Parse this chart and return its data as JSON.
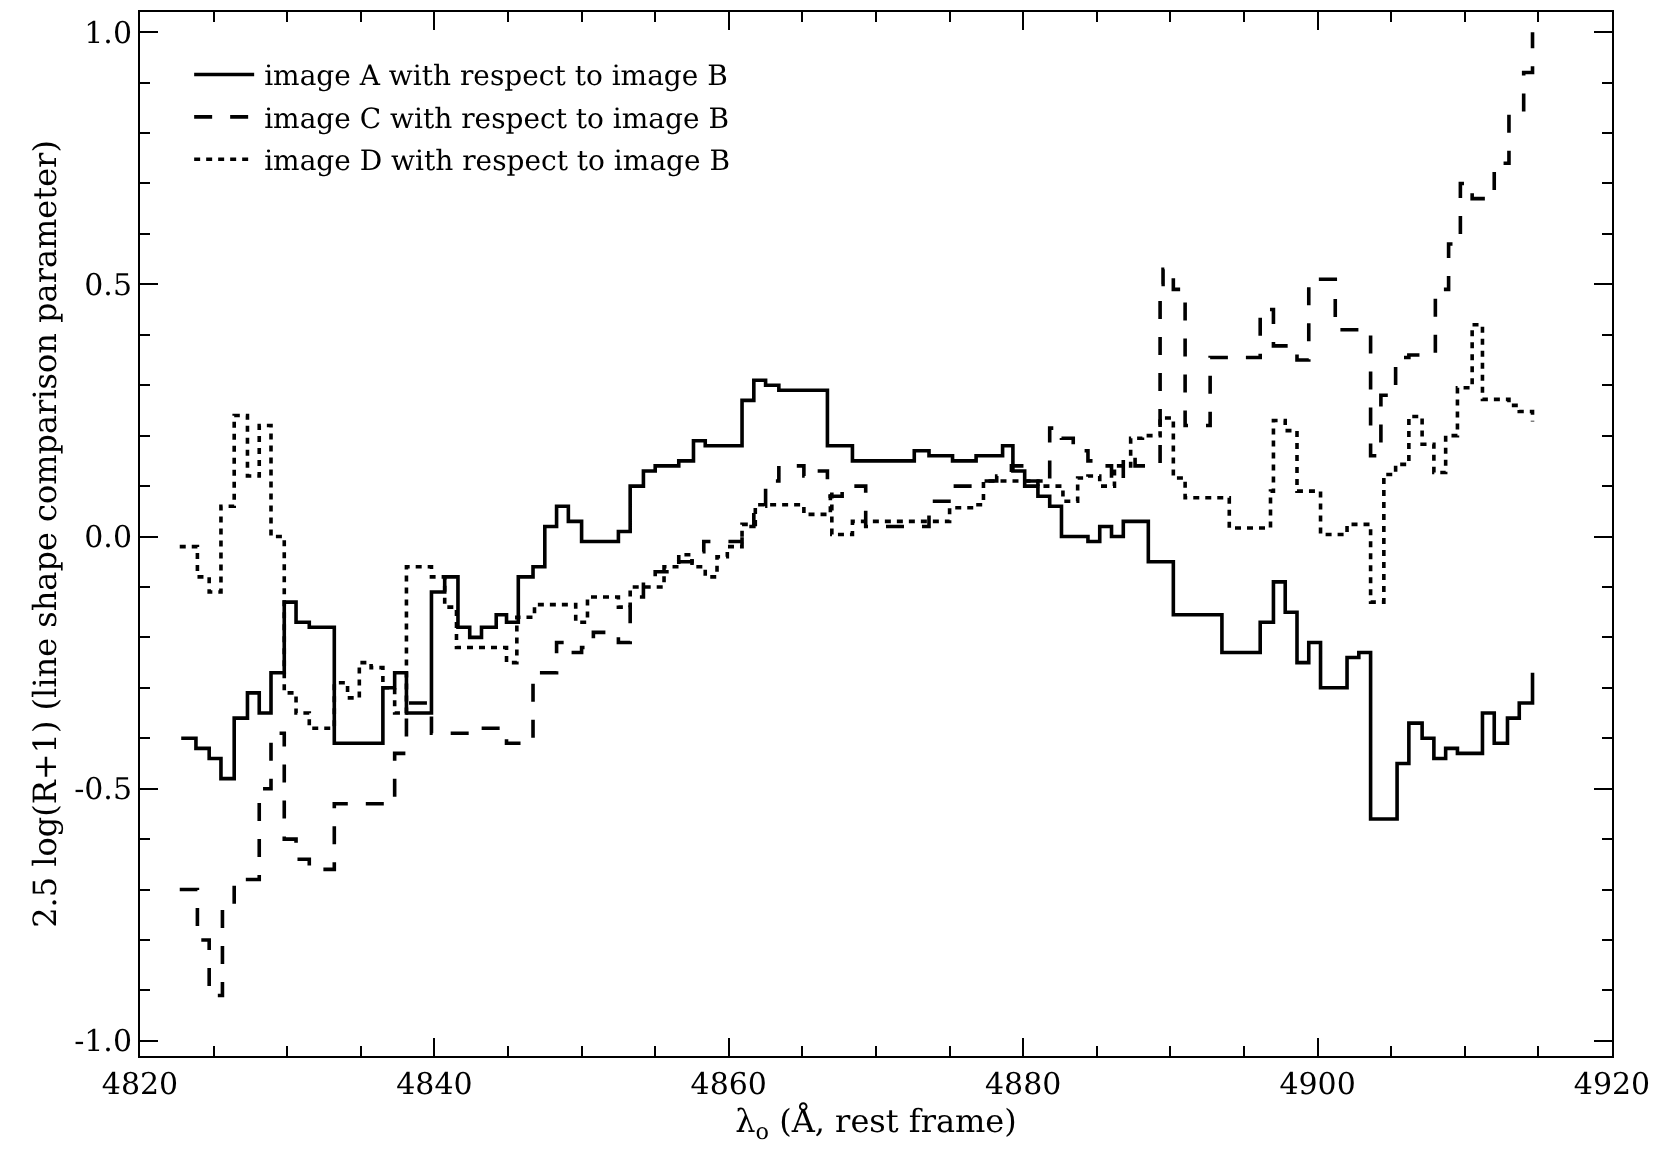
{
  "chart_data": {
    "type": "step",
    "xlabel": "λ$_{o}$ (Å, rest frame)",
    "ylabel": "2.5 log(R+1) (line shape comparison parameter)",
    "xlim": [
      4820,
      4920
    ],
    "ylim": [
      -1.03,
      1.04
    ],
    "xticks": [
      4820,
      {
        "value": 4825,
        "label": null
      },
      {
        "value": 4830,
        "label": null
      },
      {
        "value": 4835,
        "label": null
      },
      4840,
      {
        "value": 4845,
        "label": null
      },
      {
        "value": 4850,
        "label": null
      },
      {
        "value": 4855,
        "label": null
      },
      4860,
      {
        "value": 4865,
        "label": null
      },
      {
        "value": 4870,
        "label": null
      },
      {
        "value": 4875,
        "label": null
      },
      4880,
      {
        "value": 4885,
        "label": null
      },
      {
        "value": 4890,
        "label": null
      },
      {
        "value": 4895,
        "label": null
      },
      4900,
      {
        "value": 4905,
        "label": null
      },
      {
        "value": 4910,
        "label": null
      },
      {
        "value": 4915,
        "label": null
      },
      4920
    ],
    "yticks": [
      {
        "value": -1.0,
        "label": "-1.0"
      },
      {
        "value": -0.9,
        "label": null
      },
      {
        "value": -0.8,
        "label": null
      },
      {
        "value": -0.7,
        "label": null
      },
      {
        "value": -0.6,
        "label": null
      },
      {
        "value": -0.5,
        "label": "-0.5"
      },
      {
        "value": -0.4,
        "label": null
      },
      {
        "value": -0.3,
        "label": null
      },
      {
        "value": -0.2,
        "label": null
      },
      {
        "value": -0.1,
        "label": null
      },
      {
        "value": 0.0,
        "label": "0.0"
      },
      {
        "value": 0.1,
        "label": null
      },
      {
        "value": 0.2,
        "label": null
      },
      {
        "value": 0.3,
        "label": null
      },
      {
        "value": 0.4,
        "label": null
      },
      {
        "value": 0.5,
        "label": "0.5"
      },
      {
        "value": 0.6,
        "label": null
      },
      {
        "value": 0.7,
        "label": null
      },
      {
        "value": 0.8,
        "label": null
      },
      {
        "value": 0.9,
        "label": null
      },
      {
        "value": 1.0,
        "label": "1.0"
      }
    ],
    "grid": false,
    "legend": "top left",
    "series": [
      {
        "name": "image A with respect to image B",
        "color": "#000000",
        "line_style": "solid",
        "x": [
          4822.8,
          4823.8,
          4824.7,
          4825.5,
          4826.4,
          4827.3,
          4828.1,
          4828.9,
          4829.8,
          4830.6,
          4831.5,
          4833.2,
          4836.5,
          4837.3,
          4838.1,
          4839.8,
          4840.7,
          4841.6,
          4842.4,
          4843.2,
          4844.2,
          4844.9,
          4845.7,
          4846.7,
          4847.5,
          4848.3,
          4849.1,
          4850.0,
          4852.5,
          4853.3,
          4854.2,
          4855.0,
          4856.6,
          4857.6,
          4858.4,
          4859.9,
          4860.9,
          4861.7,
          4862.5,
          4863.4,
          4865.1,
          4866.7,
          4868.4,
          4872.6,
          4873.6,
          4875.2,
          4876.8,
          4878.6,
          4879.3,
          4880.1,
          4881.0,
          4881.8,
          4882.6,
          4884.4,
          4885.2,
          4886.0,
          4886.8,
          4888.5,
          4890.2,
          4893.5,
          4896.1,
          4897.0,
          4897.8,
          4898.6,
          4899.4,
          4900.2,
          4902.0,
          4902.8,
          4903.6,
          4905.4,
          4906.2,
          4907.1,
          4907.9,
          4908.7,
          4909.5,
          4911.2,
          4912.0,
          4912.9,
          4913.7,
          4914.6
        ],
        "values": [
          -0.4,
          -0.42,
          -0.44,
          -0.48,
          -0.36,
          -0.31,
          -0.35,
          -0.27,
          -0.13,
          -0.17,
          -0.18,
          -0.41,
          -0.3,
          -0.27,
          -0.35,
          -0.11,
          -0.08,
          -0.18,
          -0.2,
          -0.18,
          -0.155,
          -0.17,
          -0.08,
          -0.06,
          0.02,
          0.06,
          0.03,
          -0.01,
          0.01,
          0.1,
          0.13,
          0.14,
          0.15,
          0.19,
          0.18,
          0.18,
          0.27,
          0.31,
          0.3,
          0.29,
          0.29,
          0.18,
          0.15,
          0.17,
          0.16,
          0.15,
          0.16,
          0.18,
          0.13,
          0.1,
          0.08,
          0.06,
          0.0,
          -0.01,
          0.02,
          0.0,
          0.03,
          -0.05,
          -0.155,
          -0.23,
          -0.17,
          -0.09,
          -0.15,
          -0.25,
          -0.21,
          -0.3,
          -0.24,
          -0.23,
          -0.56,
          -0.45,
          -0.37,
          -0.4,
          -0.44,
          -0.42,
          -0.43,
          -0.35,
          -0.41,
          -0.36,
          -0.33,
          -0.27
        ]
      },
      {
        "name": "image C with respect to image B",
        "color": "#000000",
        "line_style": "dashed",
        "x": [
          4822.7,
          4823.9,
          4824.7,
          4825.6,
          4826.4,
          4828.1,
          4828.9,
          4829.8,
          4830.6,
          4831.5,
          4833.2,
          4836.5,
          4837.3,
          4838.1,
          4839.8,
          4840.7,
          4842.4,
          4843.2,
          4844.9,
          4846.7,
          4847.5,
          4848.3,
          4849.1,
          4850.0,
          4850.8,
          4852.5,
          4853.3,
          4854.2,
          4855.0,
          4856.6,
          4857.5,
          4858.3,
          4860.9,
          4861.7,
          4862.5,
          4863.4,
          4865.1,
          4865.9,
          4866.7,
          4867.7,
          4869.3,
          4873.6,
          4875.2,
          4876.8,
          4878.2,
          4879.2,
          4880.1,
          4881.0,
          4881.8,
          4882.6,
          4883.4,
          4884.4,
          4885.2,
          4886.0,
          4886.8,
          4887.6,
          4889.3,
          4889.5,
          4890.2,
          4891.0,
          4891.9,
          4892.7,
          4896.1,
          4897.0,
          4897.8,
          4898.6,
          4899.4,
          4901.2,
          4903.6,
          4904.3,
          4905.3,
          4906.2,
          4907.1,
          4908.0,
          4908.9,
          4909.7,
          4910.5,
          4912.0,
          4913.0,
          4914.0,
          4914.6
        ],
        "values": [
          -0.7,
          -0.8,
          -0.91,
          -0.73,
          -0.68,
          -0.5,
          -0.39,
          -0.6,
          -0.64,
          -0.66,
          -0.53,
          -0.53,
          -0.43,
          -0.33,
          -0.39,
          -0.39,
          -0.38,
          -0.38,
          -0.41,
          -0.27,
          -0.27,
          -0.21,
          -0.23,
          -0.22,
          -0.19,
          -0.21,
          -0.12,
          -0.08,
          -0.07,
          -0.05,
          -0.03,
          -0.01,
          0.02,
          0.06,
          0.11,
          0.14,
          0.12,
          0.13,
          0.08,
          0.1,
          0.02,
          0.07,
          0.1,
          0.11,
          0.12,
          0.14,
          0.11,
          0.1,
          0.215,
          0.195,
          0.17,
          0.15,
          0.14,
          0.11,
          0.16,
          0.14,
          0.5,
          0.53,
          0.49,
          0.22,
          0.22,
          0.355,
          0.45,
          0.378,
          0.378,
          0.35,
          0.51,
          0.41,
          0.16,
          0.28,
          0.355,
          0.36,
          0.36,
          0.49,
          0.58,
          0.7,
          0.67,
          0.74,
          0.84,
          0.92,
          1.0
        ]
      },
      {
        "name": "image D with respect to image B",
        "color": "#000000",
        "line_style": "dotted",
        "x": [
          4822.7,
          4823.9,
          4824.7,
          4825.5,
          4826.4,
          4827.3,
          4828.1,
          4828.9,
          4829.8,
          4830.6,
          4831.5,
          4833.2,
          4834.1,
          4834.9,
          4835.7,
          4836.5,
          4837.3,
          4838.1,
          4839.8,
          4840.7,
          4841.5,
          4843.2,
          4844.9,
          4845.6,
          4846.8,
          4849.6,
          4850.4,
          4851.6,
          4852.5,
          4853.3,
          4855.6,
          4856.6,
          4857.5,
          4858.4,
          4859.2,
          4859.9,
          4860.9,
          4861.8,
          4865.1,
          4866.9,
          4867.0,
          4868.4,
          4875.0,
          4876.8,
          4877.3,
          4879.1,
          4881.2,
          4882.7,
          4883.7,
          4884.4,
          4885.2,
          4886.2,
          4887.3,
          4888.1,
          4889.3,
          4890.2,
          4891.0,
          4893.7,
          4894.0,
          4896.8,
          4897.0,
          4897.8,
          4898.6,
          4900.2,
          4902.0,
          4903.6,
          4904.5,
          4905.3,
          4906.2,
          4907.1,
          4907.9,
          4908.7,
          4909.5,
          4910.5,
          4911.2,
          4913.0,
          4913.7,
          4914.6
        ],
        "values": [
          -0.02,
          -0.08,
          -0.11,
          0.06,
          0.24,
          0.12,
          0.22,
          0.0,
          -0.31,
          -0.35,
          -0.38,
          -0.29,
          -0.32,
          -0.25,
          -0.26,
          -0.3,
          -0.35,
          -0.06,
          -0.08,
          -0.14,
          -0.22,
          -0.22,
          -0.25,
          -0.16,
          -0.135,
          -0.17,
          -0.12,
          -0.12,
          -0.14,
          -0.1,
          -0.06,
          -0.036,
          -0.06,
          -0.08,
          -0.04,
          -0.02,
          0.024,
          0.063,
          0.044,
          0.09,
          0.004,
          0.03,
          0.057,
          0.063,
          0.11,
          0.11,
          0.1,
          0.07,
          0.116,
          0.12,
          0.1,
          0.14,
          0.195,
          0.2,
          0.235,
          0.116,
          0.077,
          0.077,
          0.017,
          0.09,
          0.23,
          0.21,
          0.09,
          0.004,
          0.024,
          -0.13,
          0.123,
          0.143,
          0.238,
          0.183,
          0.127,
          0.2,
          0.295,
          0.42,
          0.272,
          0.26,
          0.248,
          0.228
        ]
      }
    ]
  }
}
